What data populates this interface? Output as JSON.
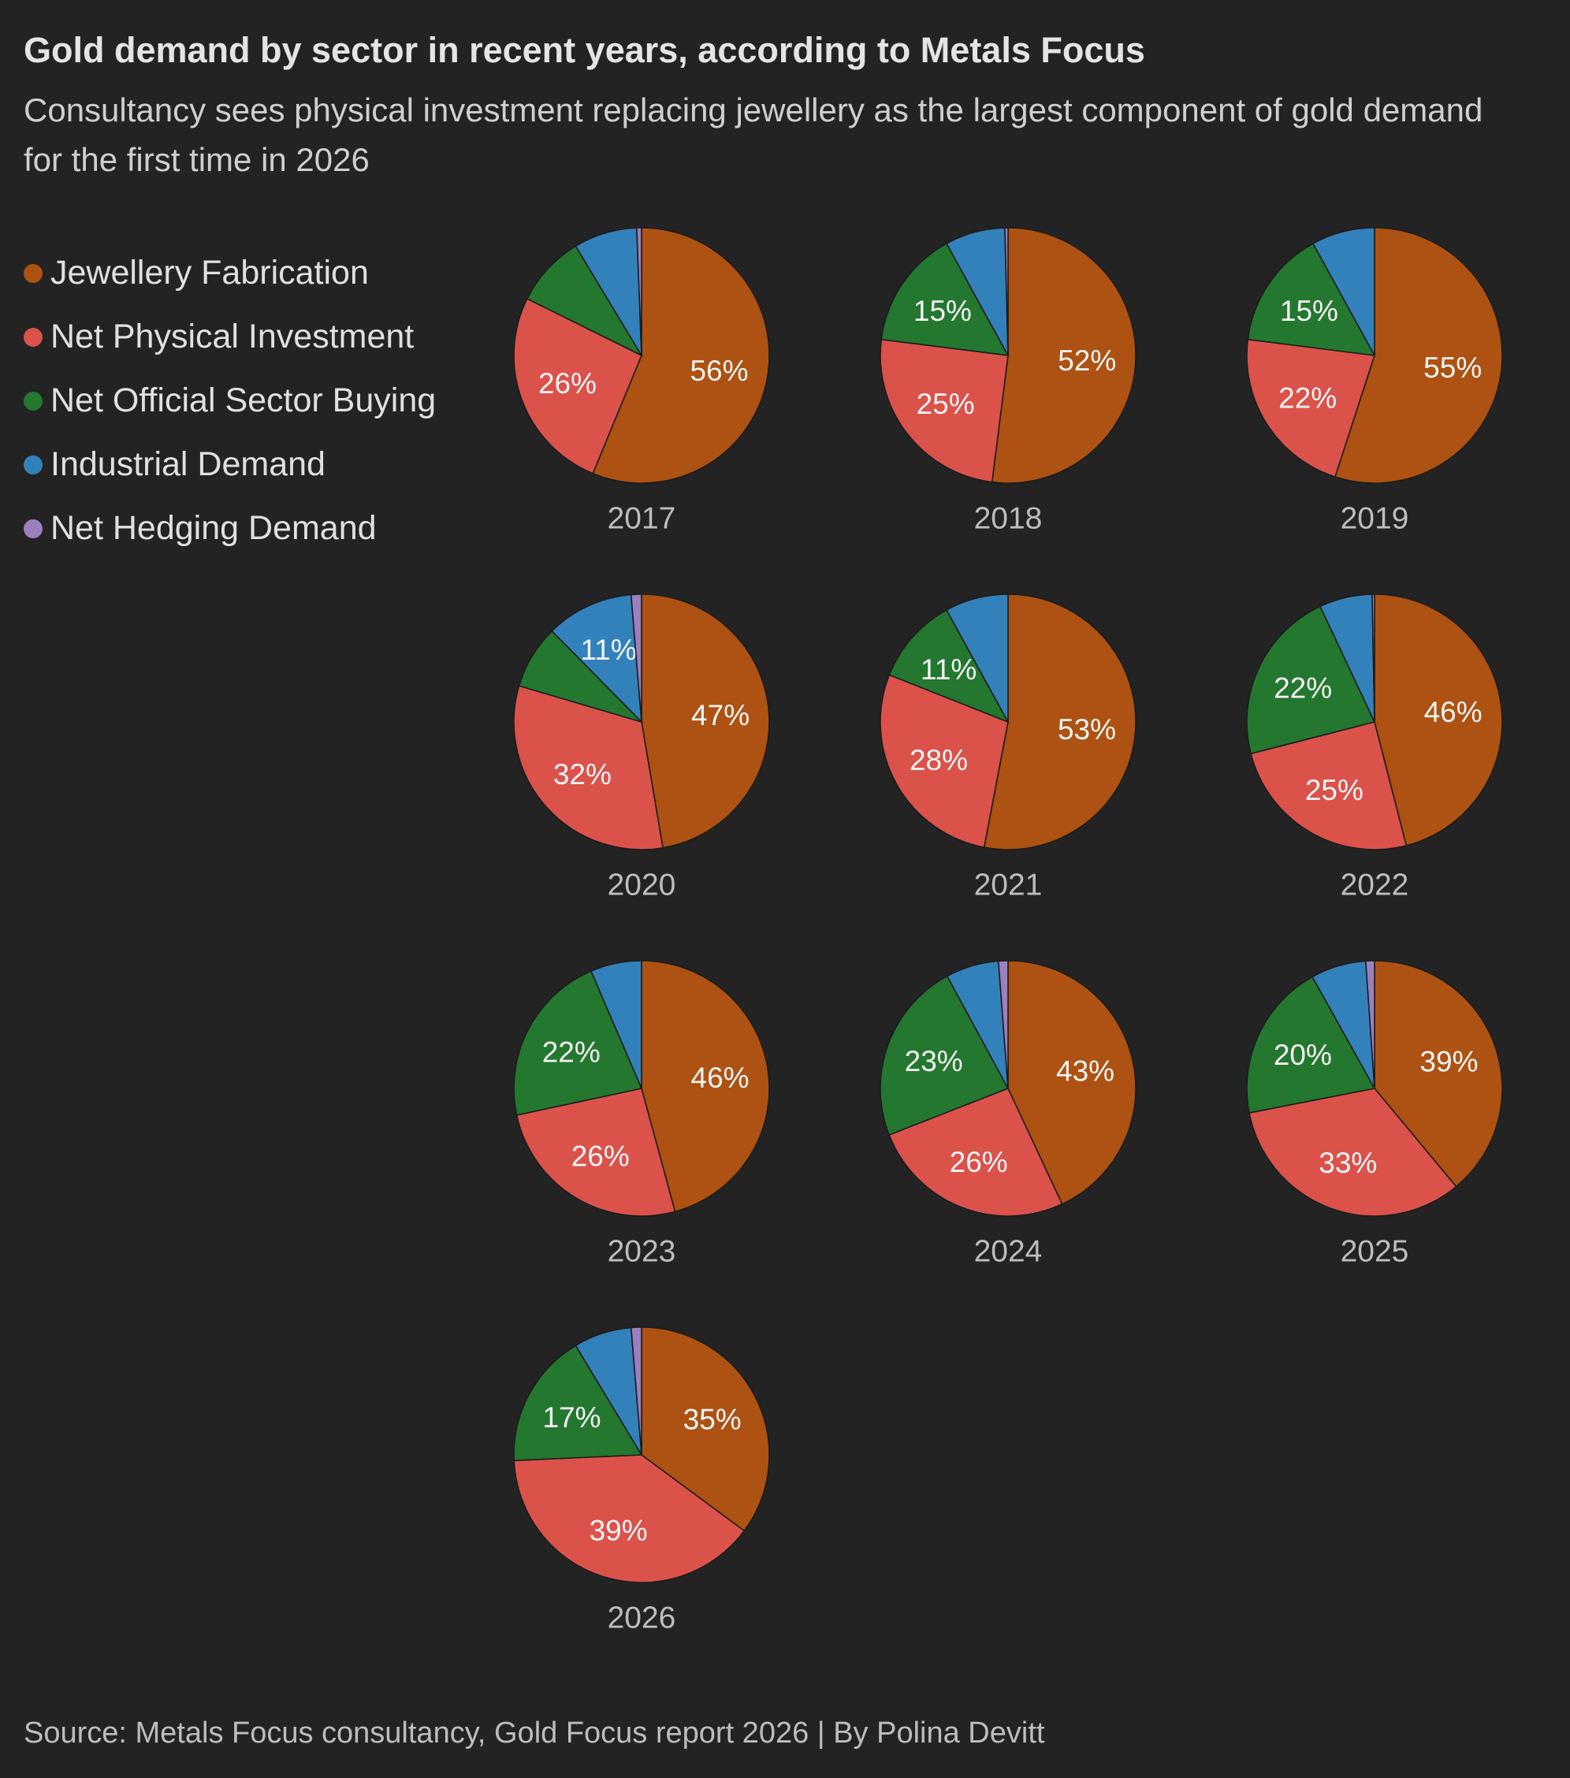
{
  "title": "Gold demand by sector in recent years, according to Metals Focus",
  "subtitle": "Consultancy sees physical investment replacing jewellery as the largest component of gold demand for the first time in 2026",
  "source": "Source: Metals Focus consultancy, Gold Focus report 2026 | By Polina Devitt",
  "colors": {
    "Jewellery Fabrication": "#ad5212",
    "Net Physical Investment": "#db524b",
    "Net Official Sector Buying": "#24772f",
    "Industrial Demand": "#3381ba",
    "Net Hedging Demand": "#9b7fbf"
  },
  "chart_data": {
    "type": "pie",
    "legend": [
      "Jewellery Fabrication",
      "Net Physical Investment",
      "Net Official Sector Buying",
      "Industrial Demand",
      "Net Hedging Demand"
    ],
    "legend_position": "left",
    "pies": [
      {
        "year": "2017",
        "values": [
          56,
          26,
          9,
          8,
          0.6
        ],
        "labels": [
          "56%",
          "26%",
          "",
          "",
          ""
        ]
      },
      {
        "year": "2018",
        "values": [
          52,
          25,
          15,
          7.6,
          0.4
        ],
        "labels": [
          "52%",
          "25%",
          "15%",
          "",
          ""
        ]
      },
      {
        "year": "2019",
        "values": [
          55,
          22,
          15,
          8,
          0
        ],
        "labels": [
          "55%",
          "22%",
          "15%",
          "",
          ""
        ]
      },
      {
        "year": "2020",
        "values": [
          47,
          32,
          8,
          11,
          1.3
        ],
        "labels": [
          "47%",
          "32%",
          "",
          "11%",
          ""
        ]
      },
      {
        "year": "2021",
        "values": [
          53,
          28,
          11,
          8,
          0
        ],
        "labels": [
          "53%",
          "28%",
          "11%",
          "",
          ""
        ]
      },
      {
        "year": "2022",
        "values": [
          46,
          25,
          22,
          6.7,
          0.3
        ],
        "labels": [
          "46%",
          "25%",
          "22%",
          "",
          ""
        ]
      },
      {
        "year": "2023",
        "values": [
          46,
          26,
          22,
          6.5,
          0
        ],
        "labels": [
          "46%",
          "26%",
          "22%",
          "",
          ""
        ]
      },
      {
        "year": "2024",
        "values": [
          43,
          26,
          23,
          6.7,
          1.2
        ],
        "labels": [
          "43%",
          "26%",
          "23%",
          "",
          ""
        ]
      },
      {
        "year": "2025",
        "values": [
          39,
          33,
          20,
          7,
          1.1
        ],
        "labels": [
          "39%",
          "33%",
          "20%",
          "",
          ""
        ]
      },
      {
        "year": "2026",
        "values": [
          35,
          39,
          17,
          7.3,
          1.3
        ],
        "labels": [
          "35%",
          "39%",
          "17%",
          "",
          ""
        ]
      }
    ]
  }
}
